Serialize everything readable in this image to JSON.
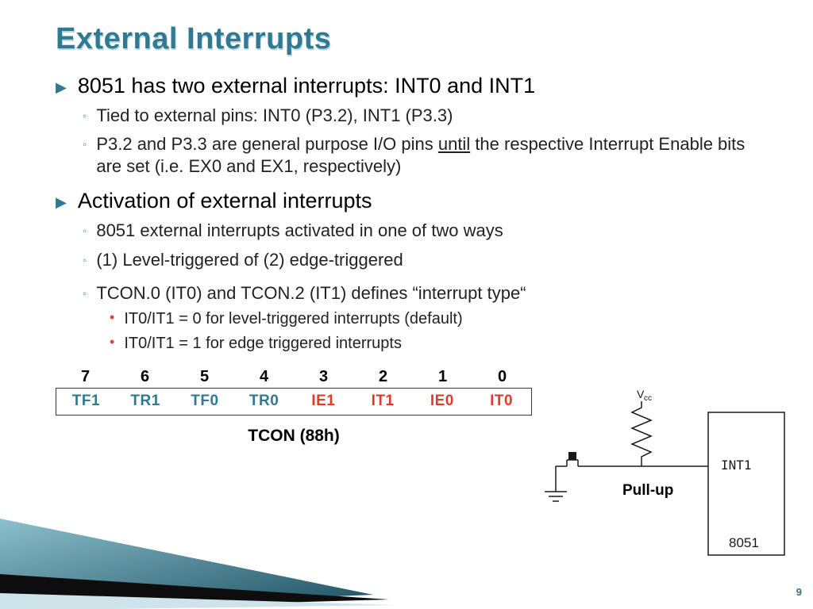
{
  "colors": {
    "title": "#2f7a92",
    "title_shadow": "#bcd5dd",
    "bullet1_marker": "#2f7a92",
    "bullet2_marker": "#5f8a99",
    "bullet3_marker": "#d24a3a",
    "reg_blue": "#2f7a92",
    "reg_red": "#e03a2a",
    "box_stroke": "#1a1a1a",
    "wedge_light": "#cfe3ea",
    "wedge_dark": "#111111",
    "wedge_teal1": "#3f8ca4",
    "wedge_teal2": "#1b4e5e"
  },
  "title": "External Interrupts",
  "b1a": "8051 has two external interrupts: INT0 and INT1",
  "b1a_s1": "Tied to external pins: INT0 (P3.2), INT1 (P3.3)",
  "b1a_s2a": "P3.2 and P3.3 are general purpose I/O pins ",
  "b1a_s2u": "until",
  "b1a_s2b": " the respective Interrupt Enable bits are set (i.e. EX0 and EX1, respectively)",
  "b1b": "Activation of external interrupts",
  "b1b_s1": "8051 external interrupts activated in one of two ways",
  "b1b_s2": "(1) Level-triggered of (2) edge-triggered",
  "b1b_s3": "TCON.0 (IT0) and TCON.2 (IT1) defines “interrupt type“",
  "b1b_s3_d1": "IT0/IT1 = 0 for level-triggered interrupts (default)",
  "b1b_s3_d2": "IT0/IT1 = 1 for edge triggered interrupts",
  "tcon": {
    "bit_nums": [
      "7",
      "6",
      "5",
      "4",
      "3",
      "2",
      "1",
      "0"
    ],
    "bits": [
      {
        "label": "TF1",
        "color": "#2f7a92"
      },
      {
        "label": "TR1",
        "color": "#2f7a92"
      },
      {
        "label": "TF0",
        "color": "#2f7a92"
      },
      {
        "label": "TR0",
        "color": "#2f7a92"
      },
      {
        "label": "IE1",
        "color": "#e03a2a"
      },
      {
        "label": "IT1",
        "color": "#e03a2a"
      },
      {
        "label": "IE0",
        "color": "#e03a2a"
      },
      {
        "label": "IT0",
        "color": "#e03a2a"
      }
    ],
    "caption": "TCON  (88h)"
  },
  "diagram": {
    "vcc": "Vcc",
    "pullup": "Pull-up",
    "pin": "INT1",
    "chip": "8051"
  },
  "page_number": "9"
}
